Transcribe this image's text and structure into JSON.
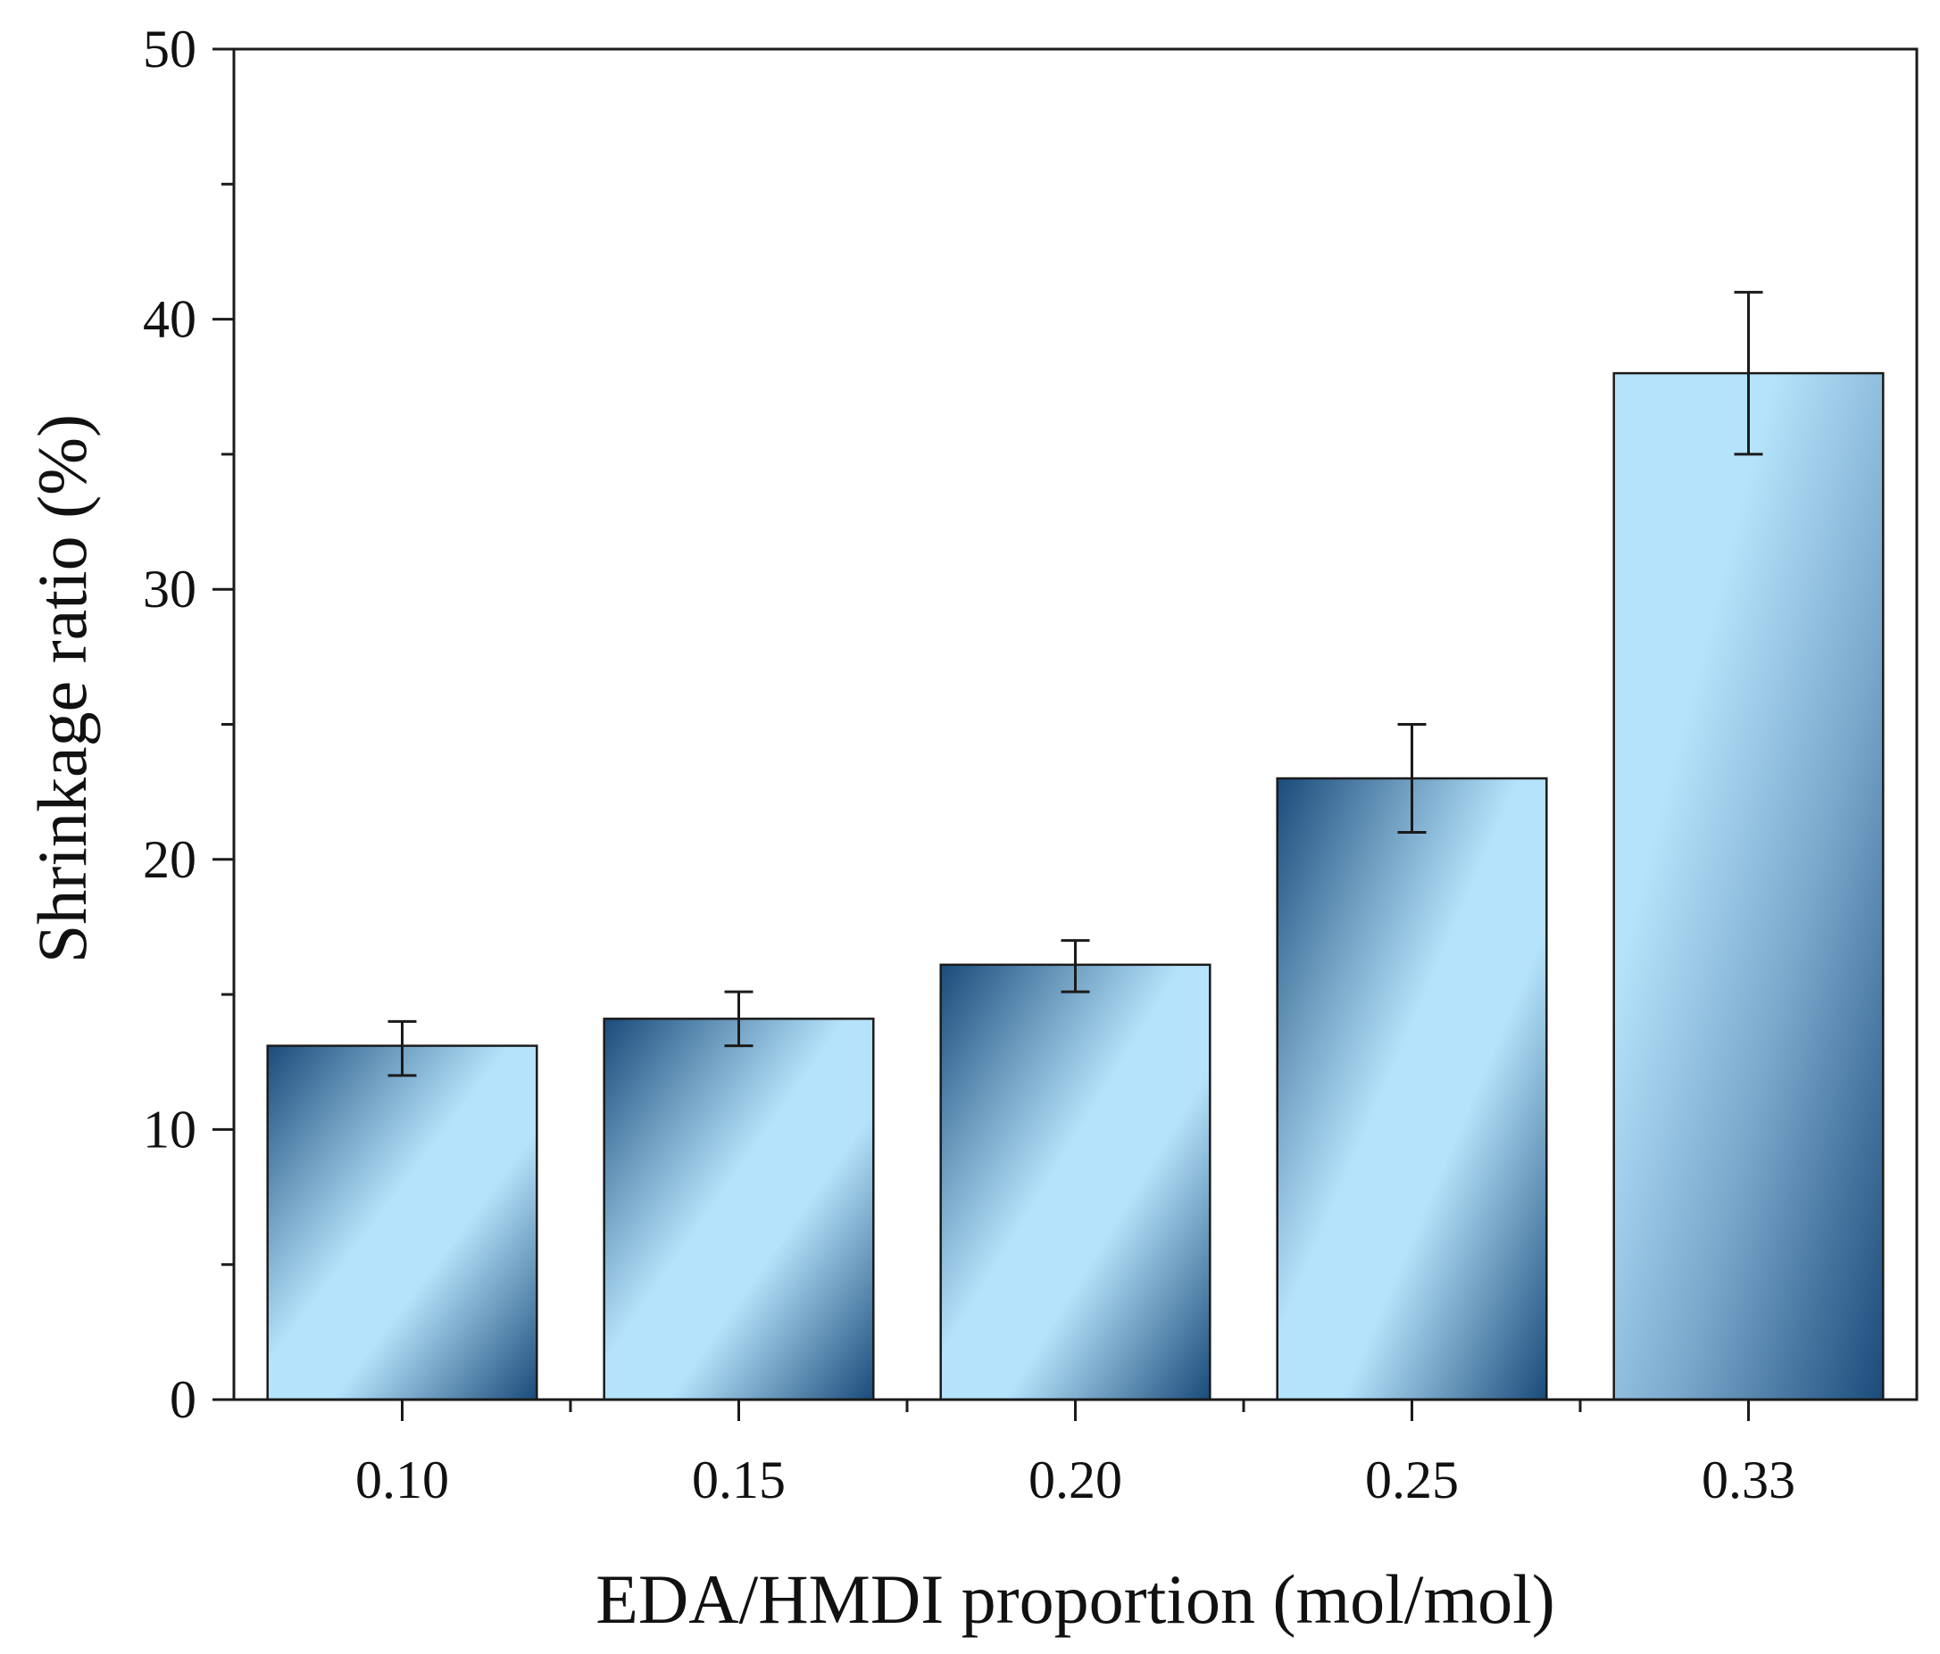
{
  "chart_data": {
    "type": "bar",
    "title": "",
    "xlabel": "EDA/HMDI proportion (mol/mol)",
    "ylabel": "Shrinkage ratio (%)",
    "categories": [
      "0.10",
      "0.15",
      "0.20",
      "0.25",
      "0.33"
    ],
    "values": [
      13.1,
      14.1,
      16.1,
      23.0,
      38.0
    ],
    "error_low": [
      12.0,
      13.1,
      15.1,
      21.0,
      35.0
    ],
    "error_high": [
      14.0,
      15.1,
      17.0,
      25.0,
      41.0
    ],
    "ylim": [
      0,
      50
    ],
    "yticks": [
      "0",
      "10",
      "20",
      "30",
      "40",
      "50"
    ],
    "grid": false,
    "bar_colors": {
      "dark": "#1a4b7a",
      "light": "#b5e3fb",
      "outline": "#1b1b1b"
    }
  }
}
